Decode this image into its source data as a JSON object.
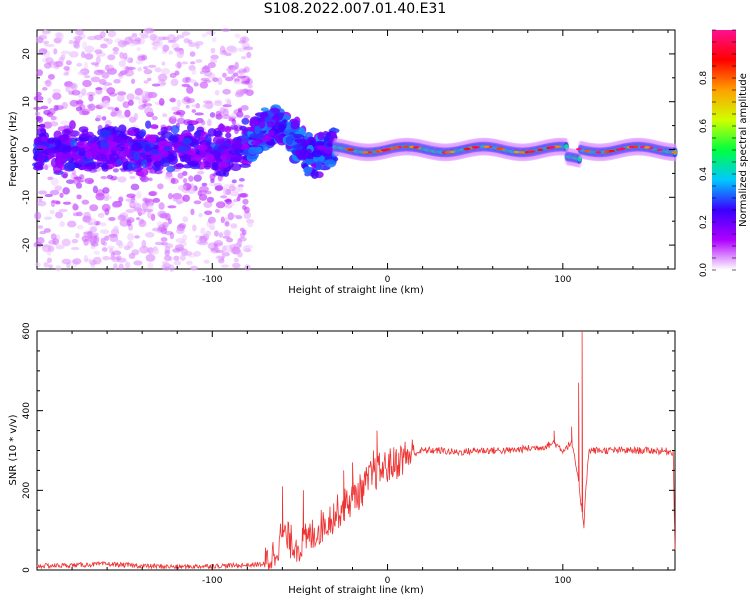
{
  "title": "S108.2022.007.01.40.E31",
  "chart_data": [
    {
      "type": "heatmap",
      "xlabel": "Height of straight line (km)",
      "ylabel": "Frequency (Hz)",
      "xlim": [
        -200,
        164
      ],
      "ylim": [
        -25,
        25
      ],
      "xticks": [
        -100,
        0,
        100
      ],
      "yticks": [
        -20,
        -10,
        0,
        10,
        20
      ],
      "colorbar": {
        "label": "Normalized spectral amplitude",
        "range": [
          0,
          1
        ],
        "ticks": [
          "0.0",
          "0.2",
          "0.4",
          "0.6",
          "0.8"
        ],
        "stops": [
          "#ffffff",
          "#b000ff",
          "#3a00ff",
          "#00c8ff",
          "#00ff40",
          "#d0ff00",
          "#ffa000",
          "#ff0000",
          "#ff1090"
        ]
      },
      "regions": [
        {
          "x_range": [
            -200,
            -78
          ],
          "description_level": 0.15
        },
        {
          "x_range": [
            -78,
            -30
          ],
          "description_level": 0.25
        },
        {
          "x_range": [
            -30,
            164
          ],
          "description_level": 0.6
        }
      ]
    },
    {
      "type": "line",
      "xlabel": "Height of straight line (km)",
      "ylabel": "SNR (10 * v/v)",
      "xlim": [
        -200,
        164
      ],
      "ylim": [
        0,
        600
      ],
      "xticks": [
        -100,
        0,
        100
      ],
      "yticks": [
        0,
        200,
        400,
        600
      ],
      "color": "#ee3333",
      "x": [
        -200,
        -180,
        -160,
        -140,
        -120,
        -100,
        -80,
        -70,
        -65,
        -60,
        -55,
        -50,
        -45,
        -40,
        -35,
        -30,
        -25,
        -20,
        -15,
        -10,
        -5,
        0,
        5,
        10,
        20,
        30,
        40,
        50,
        60,
        70,
        80,
        90,
        95,
        100,
        105,
        108,
        110,
        111,
        112,
        113,
        115,
        120,
        130,
        140,
        150,
        160,
        163,
        164
      ],
      "y": [
        10,
        12,
        15,
        10,
        8,
        10,
        12,
        15,
        40,
        90,
        70,
        60,
        80,
        100,
        120,
        140,
        160,
        180,
        200,
        230,
        250,
        260,
        270,
        285,
        300,
        300,
        295,
        300,
        300,
        300,
        305,
        310,
        320,
        300,
        320,
        250,
        180,
        150,
        110,
        200,
        300,
        300,
        300,
        300,
        300,
        298,
        296,
        50
      ],
      "spikes": [
        {
          "x": -60,
          "y": 210
        },
        {
          "x": -48,
          "y": 200
        },
        {
          "x": -25,
          "y": 250
        },
        {
          "x": -20,
          "y": 270
        },
        {
          "x": -8,
          "y": 300
        },
        {
          "x": -6,
          "y": 350
        },
        {
          "x": 95,
          "y": 350
        },
        {
          "x": 105,
          "y": 360
        },
        {
          "x": 109,
          "y": 470
        },
        {
          "x": 111,
          "y": 600
        },
        {
          "x": 112,
          "y": 105
        }
      ]
    }
  ]
}
